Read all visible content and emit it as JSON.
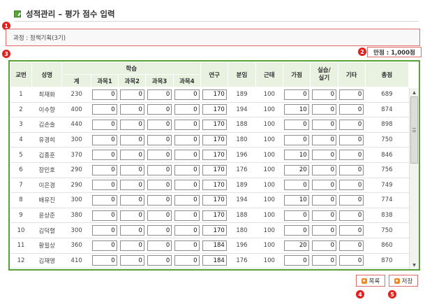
{
  "header": {
    "title": "성적관리 – 평가 점수 입력"
  },
  "markers": {
    "course": "1",
    "full_score": "2",
    "grid": "3",
    "list": "4",
    "save": "5"
  },
  "course": {
    "text": "과정 : 정책기획(3기)"
  },
  "full_score": {
    "text": "만점 : 1,000점"
  },
  "table": {
    "headers": {
      "seq": "교번",
      "name": "성명",
      "study": "학습",
      "total_sub": "계",
      "subject1": "과목1",
      "subject2": "과목2",
      "subject3": "과목3",
      "subject4": "과목4",
      "research": "연구",
      "group": "분임",
      "attendance": "근태",
      "bonus": "가점",
      "practice": "실습/실기",
      "etc": "기타",
      "grand_total": "총점"
    },
    "rows": [
      {
        "seq": "1",
        "name": "최재화",
        "total": "230",
        "s1": "0",
        "s2": "0",
        "s3": "0",
        "s4": "0",
        "research": "170",
        "group": "189",
        "attendance": "100",
        "bonus": "0",
        "practice": "0",
        "etc": "0",
        "grand": "689"
      },
      {
        "seq": "2",
        "name": "이수향",
        "total": "400",
        "s1": "0",
        "s2": "0",
        "s3": "0",
        "s4": "0",
        "research": "170",
        "group": "194",
        "attendance": "100",
        "bonus": "10",
        "practice": "0",
        "etc": "0",
        "grand": "874"
      },
      {
        "seq": "3",
        "name": "김손솔",
        "total": "440",
        "s1": "0",
        "s2": "0",
        "s3": "0",
        "s4": "0",
        "research": "170",
        "group": "188",
        "attendance": "100",
        "bonus": "0",
        "practice": "0",
        "etc": "0",
        "grand": "898"
      },
      {
        "seq": "4",
        "name": "유경희",
        "total": "300",
        "s1": "0",
        "s2": "0",
        "s3": "0",
        "s4": "0",
        "research": "170",
        "group": "180",
        "attendance": "100",
        "bonus": "0",
        "practice": "0",
        "etc": "0",
        "grand": "750"
      },
      {
        "seq": "5",
        "name": "김종훈",
        "total": "370",
        "s1": "0",
        "s2": "0",
        "s3": "0",
        "s4": "0",
        "research": "170",
        "group": "196",
        "attendance": "100",
        "bonus": "10",
        "practice": "0",
        "etc": "0",
        "grand": "846"
      },
      {
        "seq": "6",
        "name": "장민호",
        "total": "290",
        "s1": "0",
        "s2": "0",
        "s3": "0",
        "s4": "0",
        "research": "170",
        "group": "176",
        "attendance": "100",
        "bonus": "20",
        "practice": "0",
        "etc": "0",
        "grand": "756"
      },
      {
        "seq": "7",
        "name": "이은경",
        "total": "290",
        "s1": "0",
        "s2": "0",
        "s3": "0",
        "s4": "0",
        "research": "170",
        "group": "189",
        "attendance": "100",
        "bonus": "0",
        "practice": "0",
        "etc": "0",
        "grand": "749"
      },
      {
        "seq": "8",
        "name": "배유진",
        "total": "300",
        "s1": "0",
        "s2": "0",
        "s3": "0",
        "s4": "0",
        "research": "170",
        "group": "194",
        "attendance": "100",
        "bonus": "10",
        "practice": "0",
        "etc": "0",
        "grand": "774"
      },
      {
        "seq": "9",
        "name": "윤상준",
        "total": "380",
        "s1": "0",
        "s2": "0",
        "s3": "0",
        "s4": "0",
        "research": "170",
        "group": "188",
        "attendance": "100",
        "bonus": "0",
        "practice": "0",
        "etc": "0",
        "grand": "838"
      },
      {
        "seq": "10",
        "name": "김덕렬",
        "total": "300",
        "s1": "0",
        "s2": "0",
        "s3": "0",
        "s4": "0",
        "research": "170",
        "group": "180",
        "attendance": "100",
        "bonus": "0",
        "practice": "0",
        "etc": "0",
        "grand": "750"
      },
      {
        "seq": "11",
        "name": "황필상",
        "total": "360",
        "s1": "0",
        "s2": "0",
        "s3": "0",
        "s4": "0",
        "research": "184",
        "group": "196",
        "attendance": "100",
        "bonus": "20",
        "practice": "0",
        "etc": "0",
        "grand": "860"
      },
      {
        "seq": "12",
        "name": "김재영",
        "total": "410",
        "s1": "0",
        "s2": "0",
        "s3": "0",
        "s4": "0",
        "research": "184",
        "group": "176",
        "attendance": "100",
        "bonus": "0",
        "practice": "0",
        "etc": "0",
        "grand": "870"
      }
    ]
  },
  "buttons": {
    "list": "목록",
    "save": "저장"
  },
  "colors": {
    "accent_green": "#57a234",
    "header_bg": "#e9f1e1",
    "marker_red": "#e0211d",
    "button_orange": "#f08a24"
  }
}
